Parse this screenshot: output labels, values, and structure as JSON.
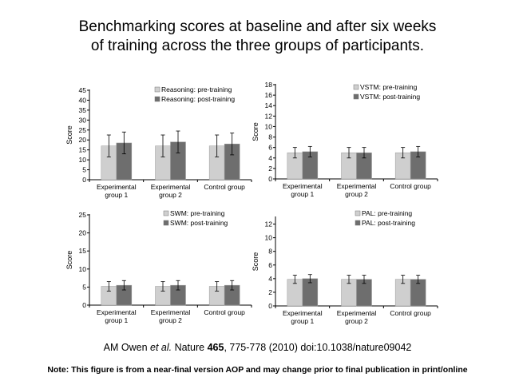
{
  "heading": {
    "line1": "Benchmarking scores at baseline and after six weeks",
    "line2": "of training across the three groups of participants."
  },
  "colors": {
    "pre": "#cfcfcf",
    "post": "#6e6e6e",
    "axis": "#000000"
  },
  "chart_data": [
    {
      "id": "reasoning",
      "type": "bar",
      "title": "",
      "ylabel": "Score",
      "ylim": [
        0,
        45
      ],
      "yticks": [
        "0",
        "5",
        "10",
        "15",
        "20",
        "25",
        "30",
        "35",
        "40",
        "45"
      ],
      "categories": [
        [
          "Experimental",
          "group 1"
        ],
        [
          "Experimental",
          "group 2"
        ],
        [
          "Control group"
        ]
      ],
      "legend_position": "top-right",
      "series": [
        {
          "name": "Reasoning: pre-training",
          "values": [
            17,
            17,
            17
          ],
          "errors": [
            5.5,
            5.5,
            5.5
          ]
        },
        {
          "name": "Reasoning: post-training",
          "values": [
            18.5,
            19,
            18
          ],
          "errors": [
            5.5,
            5.5,
            5.5
          ]
        }
      ]
    },
    {
      "id": "vstm",
      "type": "bar",
      "title": "",
      "ylabel": "Score",
      "ylim": [
        0,
        18
      ],
      "yticks": [
        "0",
        "2",
        "4",
        "6",
        "8",
        "10",
        "12",
        "14",
        "16",
        "18"
      ],
      "categories": [
        [
          "Experimental",
          "group 1"
        ],
        [
          "Experimental",
          "group 2"
        ],
        [
          "Control group"
        ]
      ],
      "legend_position": "top-right",
      "series": [
        {
          "name": "VSTM: pre-training",
          "values": [
            5,
            5,
            5
          ],
          "errors": [
            1,
            1,
            1
          ]
        },
        {
          "name": "VSTM: post-training",
          "values": [
            5.2,
            5,
            5.2
          ],
          "errors": [
            1,
            1,
            1
          ]
        }
      ]
    },
    {
      "id": "swm",
      "type": "bar",
      "title": "",
      "ylabel": "Score",
      "ylim": [
        0,
        25
      ],
      "yticks": [
        "0",
        "5",
        "10",
        "15",
        "20",
        "25"
      ],
      "categories": [
        [
          "Experimental",
          "group 1"
        ],
        [
          "Experimental",
          "group 2"
        ],
        [
          "Control group"
        ]
      ],
      "legend_position": "top-right",
      "series": [
        {
          "name": "SWM: pre-training",
          "values": [
            5.2,
            5.2,
            5.2
          ],
          "errors": [
            1.3,
            1.3,
            1.3
          ]
        },
        {
          "name": "SWM: post-training",
          "values": [
            5.5,
            5.5,
            5.5
          ],
          "errors": [
            1.3,
            1.3,
            1.3
          ]
        }
      ]
    },
    {
      "id": "pal",
      "type": "bar",
      "title": "",
      "ylabel": "Score",
      "ylim": [
        0,
        13
      ],
      "yticks": [
        "0",
        "2",
        "4",
        "6",
        "8",
        "10",
        "12"
      ],
      "categories": [
        [
          "Experimental",
          "group 1"
        ],
        [
          "Experimental",
          "group 2"
        ],
        [
          "Control group"
        ]
      ],
      "legend_position": "top-right",
      "series": [
        {
          "name": "PAL: pre-training",
          "values": [
            3.9,
            3.9,
            3.9
          ],
          "errors": [
            0.6,
            0.6,
            0.6
          ]
        },
        {
          "name": "PAL: post-training",
          "values": [
            4.0,
            3.9,
            3.9
          ],
          "errors": [
            0.6,
            0.6,
            0.6
          ]
        }
      ]
    }
  ],
  "citation": {
    "prefix": "AM Owen ",
    "authors_etal": "et al.",
    "journal": " Nature ",
    "volume": "465",
    "rest": ", 775-778 (2010) doi:10.1038/nature09042"
  },
  "note": "Note: This figure is from a near-final version AOP and may change prior to final publication in print/online"
}
